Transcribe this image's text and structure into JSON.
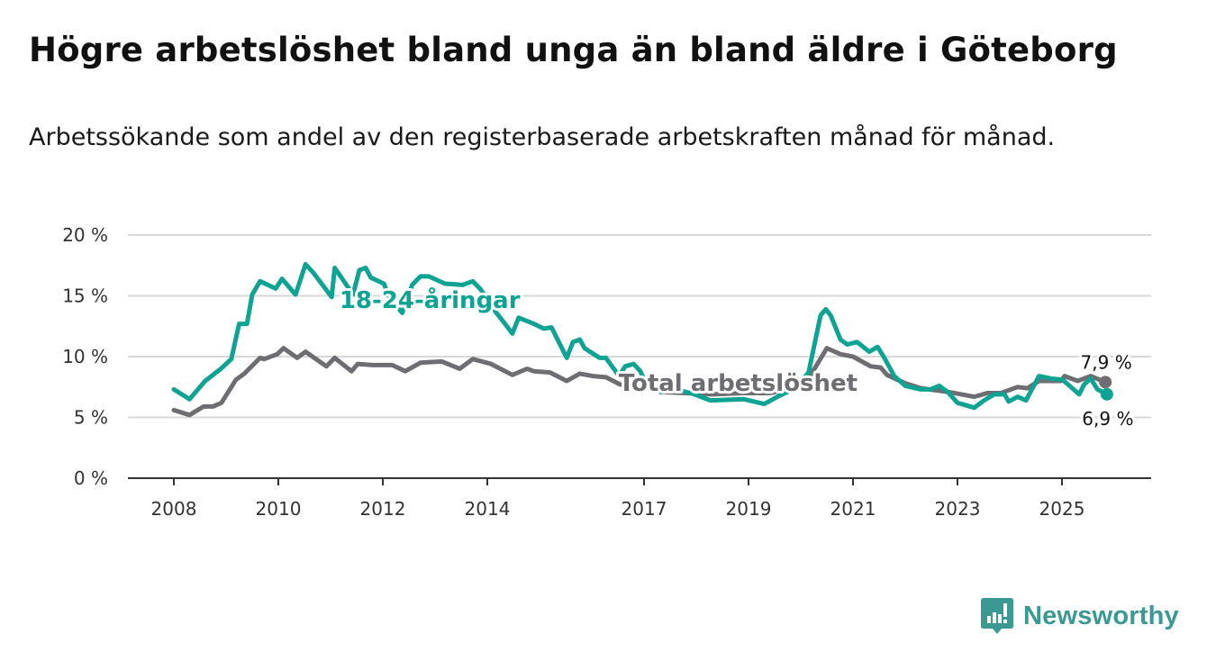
{
  "header": {
    "title": "Högre arbetslöshet bland unga än bland äldre i Göteborg",
    "subtitle": "Arbetssökande som andel av den registerbaserade arbetskraften månad för månad."
  },
  "logo": {
    "text": "Newsworthy",
    "color": "#3a9a93"
  },
  "chart_data": {
    "type": "line",
    "title": "Högre arbetslöshet bland unga än bland äldre i Göteborg",
    "xlabel": "",
    "ylabel": "",
    "xlim": [
      2007.5,
      2026.6
    ],
    "ylim": [
      0,
      20
    ],
    "grid": true,
    "x_ticks": [
      2008,
      2010,
      2012,
      2014,
      2017,
      2019,
      2021,
      2023,
      2025
    ],
    "x_tick_labels": [
      "2008",
      "2010",
      "2012",
      "2014",
      "2017",
      "2019",
      "2021",
      "2023",
      "2025"
    ],
    "y_ticks": [
      0,
      5,
      10,
      15,
      20
    ],
    "y_tick_labels": [
      "0 %",
      "5 %",
      "10 %",
      "15 %",
      "20 %"
    ],
    "series": [
      {
        "name": "Total arbetslöshet",
        "color": "#6e6d72",
        "end_label": "7,9 %",
        "x": [
          2008.0,
          2008.3,
          2008.57,
          2008.75,
          2008.91,
          2009.19,
          2009.35,
          2009.65,
          2009.73,
          2009.98,
          2010.1,
          2010.36,
          2010.52,
          2010.92,
          2011.08,
          2011.4,
          2011.52,
          2011.8,
          2012.18,
          2012.43,
          2012.72,
          2013.13,
          2013.47,
          2013.72,
          2014.07,
          2014.48,
          2014.76,
          2014.89,
          2015.2,
          2015.52,
          2015.77,
          2016.02,
          2016.27,
          2016.55,
          2016.78,
          2016.95,
          2017.31,
          2017.8,
          2018.3,
          2018.9,
          2019.4,
          2019.9,
          2020.15,
          2020.5,
          2020.76,
          2021.0,
          2021.34,
          2021.53,
          2021.65,
          2022.0,
          2022.3,
          2022.81,
          2023.32,
          2023.57,
          2023.83,
          2024.15,
          2024.34,
          2024.56,
          2024.98,
          2025.05,
          2025.3,
          2025.55,
          2025.83
        ],
        "y": [
          5.6,
          5.2,
          5.9,
          5.9,
          6.2,
          8.1,
          8.6,
          9.9,
          9.8,
          10.2,
          10.7,
          9.9,
          10.4,
          9.2,
          9.9,
          8.8,
          9.4,
          9.3,
          9.3,
          8.8,
          9.5,
          9.6,
          9.0,
          9.8,
          9.4,
          8.5,
          9.0,
          8.8,
          8.7,
          8.0,
          8.6,
          8.4,
          8.3,
          7.7,
          7.9,
          7.7,
          7.1,
          7.0,
          6.9,
          7.0,
          7.0,
          7.4,
          8.2,
          10.7,
          10.2,
          10.0,
          9.2,
          9.1,
          8.5,
          7.8,
          7.4,
          7.1,
          6.7,
          7.0,
          7.0,
          7.5,
          7.4,
          8.0,
          8.0,
          8.4,
          8.0,
          8.4,
          7.9
        ]
      },
      {
        "name": "18-24-åringar",
        "color": "#0fa394",
        "end_label": "6,9 %",
        "x": [
          2008.0,
          2008.3,
          2008.6,
          2008.9,
          2009.1,
          2009.25,
          2009.4,
          2009.5,
          2009.65,
          2009.95,
          2010.07,
          2010.33,
          2010.52,
          2010.67,
          2011.02,
          2011.08,
          2011.43,
          2011.55,
          2011.67,
          2011.77,
          2012.02,
          2012.12,
          2012.37,
          2012.56,
          2012.72,
          2012.88,
          2013.19,
          2013.53,
          2013.72,
          2013.88,
          2014.1,
          2014.32,
          2014.48,
          2014.6,
          2014.89,
          2015.08,
          2015.23,
          2015.52,
          2015.64,
          2015.77,
          2015.86,
          2016.15,
          2016.27,
          2016.52,
          2016.64,
          2016.8,
          2016.93,
          2017.0,
          2017.31,
          2017.6,
          2017.9,
          2018.27,
          2018.91,
          2019.3,
          2019.6,
          2019.9,
          2020.15,
          2020.38,
          2020.48,
          2020.57,
          2020.76,
          2020.89,
          2021.08,
          2021.31,
          2021.47,
          2021.6,
          2021.79,
          2022.0,
          2022.3,
          2022.48,
          2022.65,
          2022.81,
          2023.0,
          2023.32,
          2023.51,
          2023.7,
          2023.9,
          2023.98,
          2024.15,
          2024.31,
          2024.56,
          2024.79,
          2025.01,
          2025.17,
          2025.33,
          2025.42,
          2025.55,
          2025.68,
          2025.86
        ],
        "y": [
          7.3,
          6.5,
          8.0,
          9.0,
          9.8,
          12.7,
          12.7,
          15.1,
          16.2,
          15.6,
          16.4,
          15.1,
          17.6,
          16.9,
          14.9,
          17.3,
          15.1,
          17.1,
          17.3,
          16.5,
          16.0,
          14.9,
          13.6,
          15.9,
          16.6,
          16.6,
          16.0,
          15.9,
          16.2,
          15.5,
          14.0,
          12.8,
          11.9,
          13.2,
          12.7,
          12.3,
          12.4,
          9.9,
          11.2,
          11.4,
          10.7,
          9.9,
          9.9,
          8.4,
          9.2,
          9.4,
          8.8,
          8.1,
          7.1,
          7.3,
          7.0,
          6.4,
          6.5,
          6.1,
          6.8,
          7.4,
          8.7,
          13.4,
          13.9,
          13.4,
          11.4,
          11.0,
          11.2,
          10.4,
          10.8,
          9.9,
          8.4,
          7.6,
          7.3,
          7.3,
          7.6,
          7.1,
          6.2,
          5.8,
          6.4,
          6.9,
          6.9,
          6.3,
          6.7,
          6.4,
          8.4,
          8.2,
          8.1,
          7.5,
          6.9,
          7.7,
          8.2,
          7.3,
          6.9
        ]
      }
    ],
    "series_labels": [
      {
        "text": "18-24-åringar",
        "series": "18-24-åringar",
        "x": 2012.9,
        "y": 14.0
      },
      {
        "text": "Total arbetslöshet",
        "series": "Total arbetslöshet",
        "x": 2018.8,
        "y": 7.2
      }
    ]
  }
}
